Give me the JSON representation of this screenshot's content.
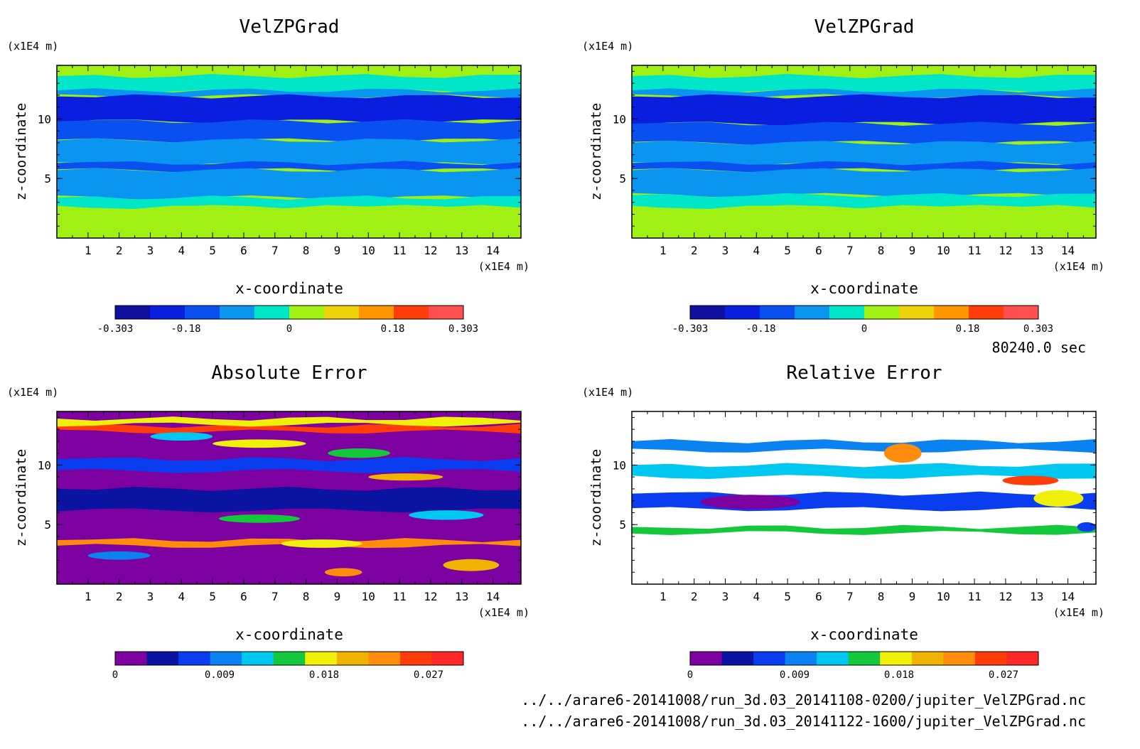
{
  "time_label": "80240.0 sec",
  "file_paths": [
    "../../arare6-20141008/run_3d.03_20141108-0200/jupiter_VelZPGrad.nc",
    "../../arare6-20141008/run_3d.03_20141122-1600/jupiter_VelZPGrad.nc"
  ],
  "colors": {
    "velocity_levels": [
      "#0f0fa0",
      "#0a1ee0",
      "#0a50f0",
      "#0a96f0",
      "#00e6c8",
      "#a0f014",
      "#f0d20a",
      "#ff9600",
      "#ff3c0a",
      "#ff5050"
    ],
    "error_levels": [
      "#7d00a0",
      "#0a14a0",
      "#0a3cf0",
      "#0a82f0",
      "#00c8f0",
      "#14c83c",
      "#f0f00a",
      "#f0b400",
      "#ff8c0a",
      "#ff3c0a",
      "#ff2828"
    ]
  },
  "chart_data": [
    {
      "type": "heatmap",
      "id": "vel1",
      "title": "VelZPGrad",
      "xlabel": "x-coordinate",
      "ylabel": "z-coordinate",
      "x_unit": "(x1E4 m)",
      "y_unit": "(x1E4 m)",
      "xlim": [
        0,
        14.9
      ],
      "ylim": [
        0,
        14.5
      ],
      "x_ticks": [
        "1",
        "2",
        "3",
        "4",
        "5",
        "6",
        "7",
        "8",
        "9",
        "10",
        "11",
        "12",
        "13",
        "14"
      ],
      "y_ticks": [
        "5",
        "10"
      ],
      "colorbar": {
        "ticks": [
          "-0.303",
          "-0.18",
          "0",
          "0.18",
          "0.303"
        ],
        "range": [
          -0.303,
          0.303
        ]
      },
      "bands": [
        {
          "z": [
            13.6,
            14.5
          ],
          "level": 5
        },
        {
          "z": [
            12.3,
            13.6
          ],
          "level": 4
        },
        {
          "z": [
            11.9,
            12.4
          ],
          "level": 3
        },
        {
          "z": [
            9.8,
            11.9
          ],
          "level": 1
        },
        {
          "z": [
            8.2,
            9.8
          ],
          "level": 2
        },
        {
          "z": [
            6.2,
            8.2
          ],
          "level": 3
        },
        {
          "z": [
            5.7,
            6.3
          ],
          "level": 2
        },
        {
          "z": [
            3.4,
            5.7
          ],
          "level": 3
        },
        {
          "z": [
            2.6,
            3.4
          ],
          "level": 4
        },
        {
          "z": [
            0,
            2.6
          ],
          "level": 5
        }
      ]
    },
    {
      "type": "heatmap",
      "id": "vel2",
      "title": "VelZPGrad",
      "xlabel": "x-coordinate",
      "ylabel": "z-coordinate",
      "x_unit": "(x1E4 m)",
      "y_unit": "(x1E4 m)",
      "xlim": [
        0,
        14.9
      ],
      "ylim": [
        0,
        14.5
      ],
      "x_ticks": [
        "1",
        "2",
        "3",
        "4",
        "5",
        "6",
        "7",
        "8",
        "9",
        "10",
        "11",
        "12",
        "13",
        "14"
      ],
      "y_ticks": [
        "5",
        "10"
      ],
      "colorbar": {
        "ticks": [
          "-0.303",
          "-0.18",
          "0",
          "0.18",
          "0.303"
        ],
        "range": [
          -0.303,
          0.303
        ]
      },
      "bands": [
        {
          "z": [
            13.6,
            14.5
          ],
          "level": 5
        },
        {
          "z": [
            12.3,
            13.6
          ],
          "level": 4
        },
        {
          "z": [
            11.9,
            12.4
          ],
          "level": 3
        },
        {
          "z": [
            9.6,
            11.9
          ],
          "level": 1
        },
        {
          "z": [
            8.0,
            9.6
          ],
          "level": 2
        },
        {
          "z": [
            6.2,
            8.0
          ],
          "level": 3
        },
        {
          "z": [
            5.7,
            6.3
          ],
          "level": 2
        },
        {
          "z": [
            3.6,
            5.7
          ],
          "level": 3
        },
        {
          "z": [
            2.6,
            3.6
          ],
          "level": 4
        },
        {
          "z": [
            0,
            2.6
          ],
          "level": 5
        }
      ]
    },
    {
      "type": "heatmap",
      "id": "abs",
      "title": "Absolute Error",
      "xlabel": "x-coordinate",
      "ylabel": "z-coordinate",
      "x_unit": "(x1E4 m)",
      "y_unit": "(x1E4 m)",
      "xlim": [
        0,
        14.9
      ],
      "ylim": [
        0,
        14.5
      ],
      "x_ticks": [
        "1",
        "2",
        "3",
        "4",
        "5",
        "6",
        "7",
        "8",
        "9",
        "10",
        "11",
        "12",
        "13",
        "14"
      ],
      "y_ticks": [
        "5",
        "10"
      ],
      "colorbar": {
        "ticks": [
          "0",
          "0.009",
          "0.018",
          "0.027"
        ],
        "range": [
          0,
          0.03
        ]
      },
      "bands": [
        {
          "z": [
            0,
            14.5
          ],
          "level": 0
        },
        {
          "z": [
            6.2,
            8.0
          ],
          "level": 1
        },
        {
          "z": [
            9.5,
            10.5
          ],
          "level": 2
        },
        {
          "z": [
            12.8,
            13.3
          ],
          "level": 9
        },
        {
          "z": [
            13.4,
            13.9
          ],
          "level": 6
        },
        {
          "z": [
            3.2,
            3.7
          ],
          "level": 8
        }
      ],
      "blobs": [
        {
          "x": 6.5,
          "z": 11.8,
          "rx": 1.5,
          "rz": 0.35,
          "level": 6
        },
        {
          "x": 11.2,
          "z": 9.0,
          "rx": 1.2,
          "rz": 0.3,
          "level": 7
        },
        {
          "x": 9.7,
          "z": 11.0,
          "rx": 1.0,
          "rz": 0.4,
          "level": 5
        },
        {
          "x": 4.0,
          "z": 12.4,
          "rx": 1.0,
          "rz": 0.35,
          "level": 4
        },
        {
          "x": 6.5,
          "z": 5.5,
          "rx": 1.3,
          "rz": 0.35,
          "level": 5
        },
        {
          "x": 9.2,
          "z": 1.0,
          "rx": 0.6,
          "rz": 0.35,
          "level": 8
        },
        {
          "x": 13.3,
          "z": 1.6,
          "rx": 0.9,
          "rz": 0.5,
          "level": 7
        },
        {
          "x": 12.5,
          "z": 5.8,
          "rx": 1.2,
          "rz": 0.4,
          "level": 4
        },
        {
          "x": 2.0,
          "z": 2.4,
          "rx": 1.0,
          "rz": 0.35,
          "level": 3
        },
        {
          "x": 8.5,
          "z": 3.4,
          "rx": 1.3,
          "rz": 0.35,
          "level": 6
        }
      ]
    },
    {
      "type": "heatmap",
      "id": "rel",
      "title": "Relative Error",
      "xlabel": "x-coordinate",
      "ylabel": "z-coordinate",
      "x_unit": "(x1E4 m)",
      "y_unit": "(x1E4 m)",
      "xlim": [
        0,
        14.9
      ],
      "ylim": [
        0,
        14.5
      ],
      "x_ticks": [
        "1",
        "2",
        "3",
        "4",
        "5",
        "6",
        "7",
        "8",
        "9",
        "10",
        "11",
        "12",
        "13",
        "14"
      ],
      "y_ticks": [
        "5",
        "10"
      ],
      "colorbar": {
        "ticks": [
          "0",
          "0.009",
          "0.018",
          "0.027"
        ],
        "range": [
          0,
          0.03
        ]
      },
      "bands": [
        {
          "z": [
            11.2,
            12.0
          ],
          "level": 3
        },
        {
          "z": [
            9.0,
            10.0
          ],
          "level": 4
        },
        {
          "z": [
            6.3,
            7.6
          ],
          "level": 2
        },
        {
          "z": [
            4.3,
            4.8
          ],
          "level": 5
        }
      ],
      "blobs": [
        {
          "x": 3.8,
          "z": 6.9,
          "rx": 1.6,
          "rz": 0.6,
          "level": 0
        },
        {
          "x": 8.7,
          "z": 11.0,
          "rx": 0.6,
          "rz": 0.8,
          "level": 8
        },
        {
          "x": 13.7,
          "z": 7.2,
          "rx": 0.8,
          "rz": 0.7,
          "level": 6
        },
        {
          "x": 12.8,
          "z": 8.7,
          "rx": 0.9,
          "rz": 0.4,
          "level": 9
        },
        {
          "x": 14.6,
          "z": 4.8,
          "rx": 0.3,
          "rz": 0.4,
          "level": 2
        }
      ]
    }
  ]
}
